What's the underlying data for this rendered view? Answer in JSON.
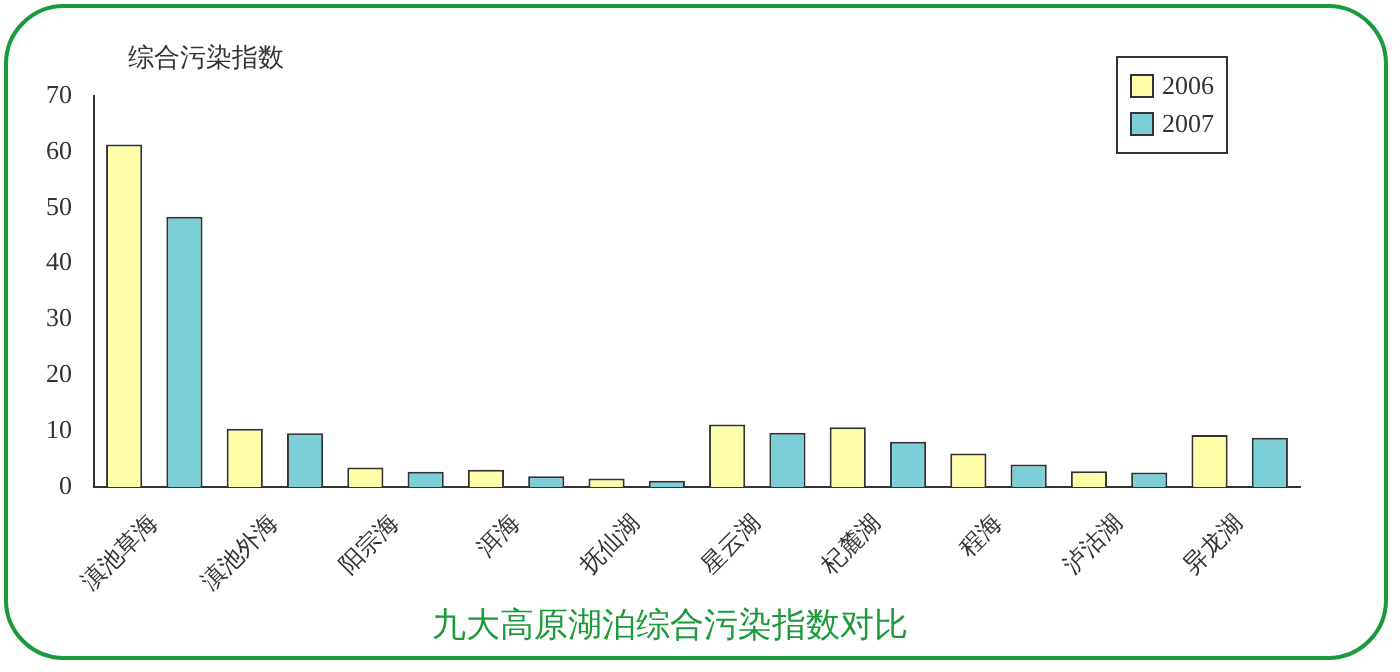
{
  "chart_data": {
    "type": "bar",
    "title": "九大高原湖泊综合污染指数对比",
    "ylabel": "综合污染指数",
    "categories": [
      "滇池草海",
      "滇池外海",
      "阳宗海",
      "洱海",
      "抚仙湖",
      "星云湖",
      "杞麓湖",
      "程海",
      "泸沽湖",
      "异龙湖"
    ],
    "series": [
      {
        "name": "2006",
        "color": "#ffffaa",
        "values": [
          61.3,
          10.4,
          3.5,
          3.1,
          1.5,
          11.2,
          10.7,
          6.0,
          2.8,
          9.3
        ]
      },
      {
        "name": "2007",
        "color": "#7ccfd6",
        "values": [
          48.4,
          9.6,
          2.7,
          1.9,
          1.1,
          9.7,
          8.1,
          4.0,
          2.6,
          8.8
        ]
      }
    ],
    "ylim": [
      0,
      70
    ],
    "yticks": [
      0,
      10,
      20,
      30,
      40,
      50,
      60,
      70
    ],
    "grid": false,
    "legend": "top right"
  }
}
